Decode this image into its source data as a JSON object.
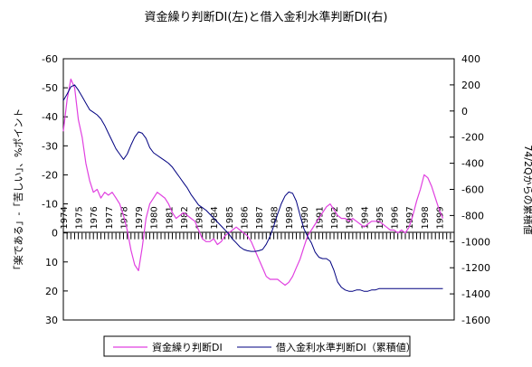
{
  "chart_data": {
    "type": "line",
    "title": "資金繰り判断DI(左)と借入金利水準判断DI(右)",
    "ylabel_left": "「楽である」-「苦しい」、%ポイント",
    "ylabel_right": "74/2Qからの累積値",
    "xlabel": "",
    "x_tick_labels": [
      "1974",
      "1975",
      "1976",
      "1977",
      "1978",
      "1979",
      "1980",
      "1981",
      "1982",
      "1983",
      "1984",
      "1985",
      "1986",
      "1987",
      "1988",
      "1989",
      "1990",
      "1991",
      "1992",
      "1993",
      "1994",
      "1995",
      "1996",
      "1997",
      "1998",
      "1999"
    ],
    "y_left": {
      "ticks": [
        -60,
        -50,
        -40,
        -30,
        -20,
        -10,
        0,
        10,
        20,
        30
      ],
      "range": [
        -60,
        30
      ],
      "inverted": true
    },
    "y_right": {
      "ticks": [
        400,
        200,
        0,
        -200,
        -400,
        -600,
        -800,
        -1000,
        -1200,
        -1400,
        -1600
      ],
      "range": [
        -1600,
        400
      ]
    },
    "grid": false,
    "legend_position": "bottom",
    "colors": {
      "series_left": "#e040e0",
      "series_right": "#000080"
    },
    "series": [
      {
        "name": "資金繰り判断DI",
        "axis": "left",
        "x": [
          1974.0,
          1974.25,
          1974.5,
          1974.75,
          1975.0,
          1975.25,
          1975.5,
          1975.75,
          1976.0,
          1976.25,
          1976.5,
          1976.75,
          1977.0,
          1977.25,
          1977.5,
          1977.75,
          1978.0,
          1978.25,
          1978.5,
          1978.75,
          1979.0,
          1979.25,
          1979.5,
          1979.75,
          1980.0,
          1980.25,
          1980.5,
          1980.75,
          1981.0,
          1981.25,
          1981.5,
          1981.75,
          1982.0,
          1982.25,
          1982.5,
          1982.75,
          1983.0,
          1983.25,
          1983.5,
          1983.75,
          1984.0,
          1984.25,
          1984.5,
          1984.75,
          1985.0,
          1985.25,
          1985.5,
          1985.75,
          1986.0,
          1986.25,
          1986.5,
          1986.75,
          1987.0,
          1987.25,
          1987.5,
          1987.75,
          1988.0,
          1988.25,
          1988.5,
          1988.75,
          1989.0,
          1989.25,
          1989.5,
          1989.75,
          1990.0,
          1990.25,
          1990.5,
          1990.75,
          1991.0,
          1991.25,
          1991.5,
          1991.75,
          1992.0,
          1992.25,
          1992.5,
          1992.75,
          1993.0,
          1993.25,
          1993.5,
          1993.75,
          1994.0,
          1994.25,
          1994.5,
          1994.75,
          1995.0,
          1995.25,
          1995.5,
          1995.75,
          1996.0,
          1996.25,
          1996.5,
          1996.75,
          1997.0,
          1997.25,
          1997.5,
          1997.75,
          1998.0,
          1998.25,
          1998.5,
          1998.75,
          1999.0,
          1999.25
        ],
        "values": [
          -35,
          -46,
          -53,
          -50,
          -39,
          -33,
          -24,
          -18,
          -14,
          -15,
          -12,
          -14,
          -13,
          -14,
          -12,
          -10,
          -6,
          -1,
          6,
          11,
          13,
          5,
          -5,
          -10,
          -12,
          -14,
          -13,
          -12,
          -10,
          -7,
          -5,
          -6,
          -7,
          -6,
          -5,
          -4,
          -1,
          2,
          3,
          3,
          2,
          4,
          3,
          1,
          0,
          -1,
          -2,
          -1,
          0,
          1,
          3,
          6,
          9,
          12,
          15,
          16,
          16,
          16,
          17,
          18,
          17,
          15,
          12,
          9,
          5,
          1,
          -1,
          -3,
          -5,
          -7,
          -9,
          -10,
          -8,
          -6,
          -5,
          -5,
          -4,
          -5,
          -4,
          -3,
          -2,
          -3,
          -4,
          -4,
          -4,
          -3,
          -2,
          -1,
          -1,
          0,
          -1,
          0,
          -2,
          -6,
          -11,
          -15,
          -20,
          -19,
          -16,
          -12,
          -8,
          -5
        ]
      },
      {
        "name": "借入金利水準判断DI（累積値）",
        "axis": "right",
        "x": [
          1974.0,
          1974.25,
          1974.5,
          1974.75,
          1975.0,
          1975.25,
          1975.5,
          1975.75,
          1976.0,
          1976.25,
          1976.5,
          1976.75,
          1977.0,
          1977.25,
          1977.5,
          1977.75,
          1978.0,
          1978.25,
          1978.5,
          1978.75,
          1979.0,
          1979.25,
          1979.5,
          1979.75,
          1980.0,
          1980.25,
          1980.5,
          1980.75,
          1981.0,
          1981.25,
          1981.5,
          1981.75,
          1982.0,
          1982.25,
          1982.5,
          1982.75,
          1983.0,
          1983.25,
          1983.5,
          1983.75,
          1984.0,
          1984.25,
          1984.5,
          1984.75,
          1985.0,
          1985.25,
          1985.5,
          1985.75,
          1986.0,
          1986.25,
          1986.5,
          1986.75,
          1987.0,
          1987.25,
          1987.5,
          1987.75,
          1988.0,
          1988.25,
          1988.5,
          1988.75,
          1989.0,
          1989.25,
          1989.5,
          1989.75,
          1990.0,
          1990.25,
          1990.5,
          1990.75,
          1991.0,
          1991.25,
          1991.5,
          1991.75,
          1992.0,
          1992.25,
          1992.5,
          1992.75,
          1993.0,
          1993.25,
          1993.5,
          1993.75,
          1994.0,
          1994.25,
          1994.5,
          1994.75,
          1995.0,
          1995.25,
          1995.5,
          1995.75,
          1996.0,
          1996.25,
          1996.5,
          1996.75,
          1997.0,
          1997.25,
          1997.5,
          1997.75,
          1998.0,
          1998.25,
          1998.5,
          1998.75,
          1999.0,
          1999.25
        ],
        "values": [
          80,
          130,
          185,
          200,
          160,
          110,
          60,
          10,
          -10,
          -30,
          -60,
          -110,
          -170,
          -230,
          -290,
          -330,
          -370,
          -330,
          -260,
          -200,
          -160,
          -170,
          -210,
          -280,
          -320,
          -340,
          -360,
          -380,
          -400,
          -430,
          -470,
          -510,
          -550,
          -590,
          -640,
          -680,
          -720,
          -740,
          -760,
          -790,
          -820,
          -850,
          -880,
          -910,
          -940,
          -980,
          -1010,
          -1040,
          -1060,
          -1070,
          -1075,
          -1075,
          -1070,
          -1060,
          -1020,
          -960,
          -880,
          -790,
          -710,
          -650,
          -620,
          -630,
          -690,
          -800,
          -900,
          -960,
          -1010,
          -1080,
          -1120,
          -1130,
          -1130,
          -1150,
          -1220,
          -1310,
          -1350,
          -1370,
          -1380,
          -1380,
          -1370,
          -1370,
          -1380,
          -1380,
          -1370,
          -1370,
          -1360,
          -1360,
          -1360,
          -1360,
          -1360,
          -1360,
          -1360,
          -1360,
          -1360,
          -1360,
          -1360,
          -1360,
          -1360,
          -1360,
          -1360,
          -1360,
          -1360,
          -1360
        ]
      }
    ]
  }
}
